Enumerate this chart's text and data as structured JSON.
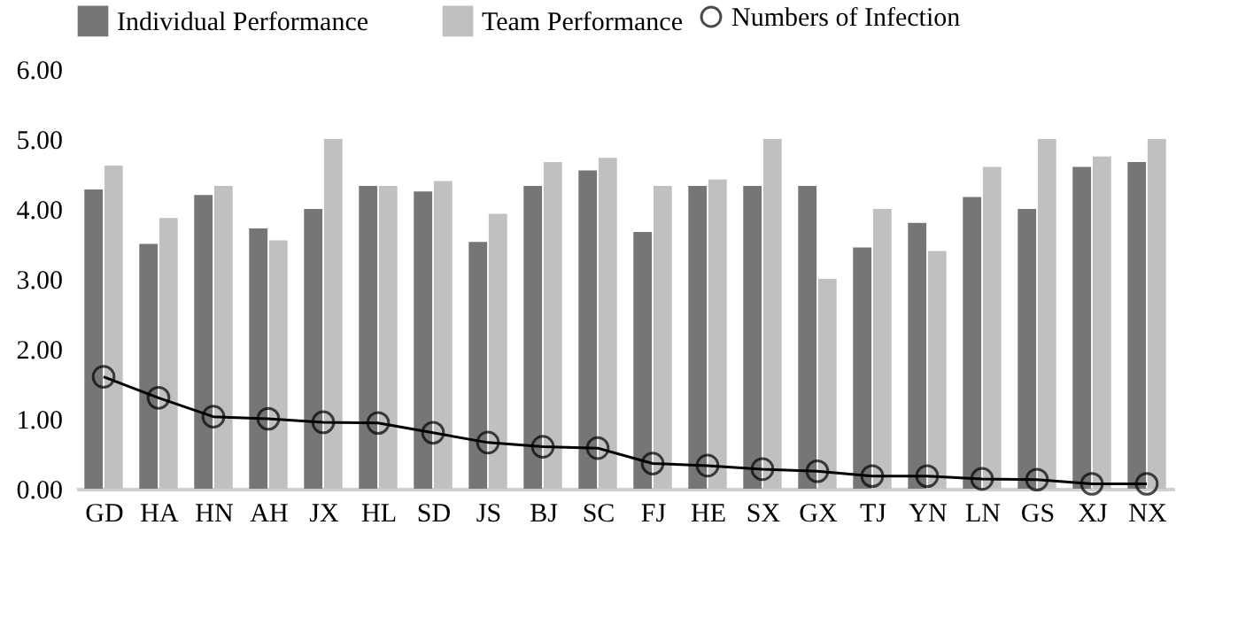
{
  "chart_data": {
    "type": "bar",
    "categories": [
      "GD",
      "HA",
      "HN",
      "AH",
      "JX",
      "HL",
      "SD",
      "JS",
      "BJ",
      "SC",
      "FJ",
      "HE",
      "SX",
      "GX",
      "TJ",
      "YN",
      "LN",
      "GS",
      "XJ",
      "NX"
    ],
    "series": [
      {
        "name": "Individual Performance",
        "color": "#767676",
        "values": [
          4.28,
          3.5,
          4.2,
          3.72,
          4.0,
          4.33,
          4.25,
          3.53,
          4.33,
          4.55,
          3.67,
          4.33,
          4.33,
          4.33,
          3.45,
          3.8,
          4.17,
          4.0,
          4.6,
          4.67
        ]
      },
      {
        "name": "Team Performance",
        "color": "#c0c0c0",
        "values": [
          4.62,
          3.87,
          4.33,
          3.55,
          5.0,
          4.33,
          4.4,
          3.93,
          4.67,
          4.73,
          4.33,
          4.42,
          5.0,
          3.0,
          4.0,
          3.4,
          4.6,
          5.0,
          4.75,
          5.0
        ]
      },
      {
        "name": "Numbers of Infection",
        "type": "line",
        "color": "#000000",
        "marker": "circle",
        "values": [
          1.6,
          1.3,
          1.03,
          1.0,
          0.95,
          0.94,
          0.8,
          0.66,
          0.6,
          0.58,
          0.36,
          0.33,
          0.28,
          0.25,
          0.18,
          0.18,
          0.14,
          0.13,
          0.07,
          0.07
        ]
      }
    ],
    "ylim": [
      0,
      6
    ],
    "yticks": [
      {
        "value": 0,
        "label": "0.00"
      },
      {
        "value": 1,
        "label": "1.00"
      },
      {
        "value": 2,
        "label": "2.00"
      },
      {
        "value": 3,
        "label": "3.00"
      },
      {
        "value": 4,
        "label": "4.00"
      },
      {
        "value": 5,
        "label": "5.00"
      },
      {
        "value": 6,
        "label": "6.00"
      }
    ],
    "grid": false,
    "legend": "top"
  }
}
